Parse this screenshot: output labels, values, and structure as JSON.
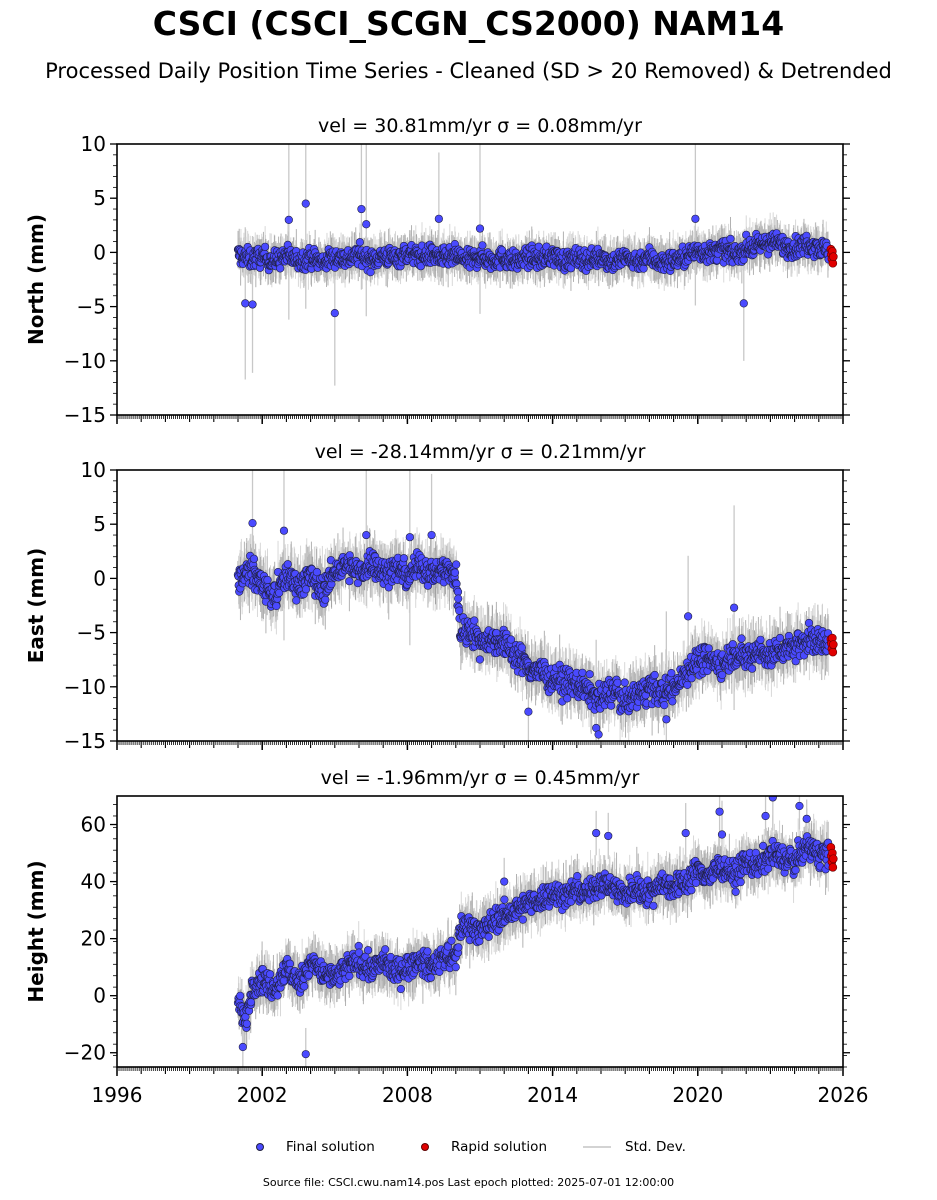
{
  "title": "CSCI (CSCI_SCGN_CS2000) NAM14",
  "subtitle": "Processed Daily Position Time Series - Cleaned (SD > 20 Removed) & Detrended",
  "legend": {
    "final_label": "Final solution",
    "rapid_label": "Rapid solution",
    "sd_label": "Std. Dev."
  },
  "footer": "Source file: CSCI.cwu.nam14.pos  Last epoch plotted: 2025-07-01 12:00:00",
  "colors": {
    "final": "#4a4aff",
    "final_edge": "#202040",
    "rapid": "#e00000",
    "sd": "#c8c8c8",
    "sd_dense": "#555555"
  },
  "chart_data": [
    {
      "type": "scatter",
      "panel": "north",
      "title": "vel = 30.81mm/yr   σ = 0.08mm/yr",
      "ylabel": "North (mm)",
      "xlim": [
        1996,
        2026
      ],
      "ylim": [
        -15,
        10
      ],
      "yticks": [
        10,
        5,
        0,
        -5,
        -10,
        -15
      ],
      "ytick_labels": [
        "10",
        "5",
        "0",
        "−5",
        "−10",
        "−15"
      ],
      "xticks": [
        1996,
        2002,
        2008,
        2014,
        2020,
        2026
      ],
      "xtick_labels": [
        "1996",
        "2002",
        "2008",
        "2014",
        "2020",
        "2026"
      ],
      "show_xtick_labels": false,
      "series": [
        {
          "type": "final",
          "x": [
            2001.0,
            2001.5,
            2002.0,
            2002.5,
            2003.0,
            2003.5,
            2004.0,
            2004.5,
            2005.0,
            2005.5,
            2006.0,
            2006.5,
            2007.0,
            2007.5,
            2008.0,
            2008.5,
            2009.0,
            2009.5,
            2010.0,
            2010.5,
            2011.0,
            2011.5,
            2012.0,
            2012.5,
            2013.0,
            2013.5,
            2014.0,
            2014.5,
            2015.0,
            2015.5,
            2016.0,
            2016.5,
            2017.0,
            2017.5,
            2018.0,
            2018.5,
            2019.0,
            2019.5,
            2020.0,
            2020.5,
            2021.0,
            2021.5,
            2022.0,
            2022.5,
            2023.0,
            2023.5,
            2024.0,
            2024.5,
            2025.0,
            2025.4
          ],
          "y": [
            -0.2,
            -0.6,
            -0.4,
            -0.8,
            -0.3,
            -0.7,
            -0.5,
            -0.9,
            -0.4,
            -0.6,
            -0.2,
            -0.7,
            -0.3,
            -0.5,
            -0.1,
            -0.4,
            -0.2,
            -0.6,
            -0.3,
            -0.8,
            -0.4,
            -0.7,
            -0.5,
            -0.9,
            -0.4,
            -0.6,
            -0.3,
            -0.8,
            -0.5,
            -0.7,
            -0.4,
            -0.9,
            -0.5,
            -0.8,
            -0.4,
            -1.0,
            -0.7,
            -0.4,
            0.2,
            -0.1,
            0.3,
            -0.2,
            0.4,
            0.6,
            1.0,
            0.7,
            0.4,
            0.8,
            0.5,
            0.1
          ],
          "band": 1.6
        },
        {
          "type": "outliers",
          "x": [
            2001.3,
            2001.6,
            2003.1,
            2003.8,
            2005.0,
            2006.1,
            2006.3,
            2009.3,
            2019.9,
            2021.9,
            2011.0
          ],
          "y": [
            -4.7,
            -4.8,
            3.0,
            4.5,
            -5.6,
            4.0,
            2.6,
            3.1,
            3.1,
            -4.7,
            2.2
          ],
          "sd_max": 9.5
        },
        {
          "type": "rapid",
          "x": [
            2025.5,
            2025.52,
            2025.54,
            2025.56,
            2025.58,
            2025.6
          ],
          "y": [
            0.3,
            -0.2,
            -0.6,
            0.1,
            -1.0,
            -0.4
          ]
        }
      ]
    },
    {
      "type": "scatter",
      "panel": "east",
      "title": "vel = -28.14mm/yr   σ = 0.21mm/yr",
      "ylabel": "East (mm)",
      "xlim": [
        1996,
        2026
      ],
      "ylim": [
        -15,
        10
      ],
      "yticks": [
        10,
        5,
        0,
        -5,
        -10,
        -15
      ],
      "ytick_labels": [
        "10",
        "5",
        "0",
        "−5",
        "−10",
        "−15"
      ],
      "xticks": [
        1996,
        2002,
        2008,
        2014,
        2020,
        2026
      ],
      "xtick_labels": [
        "1996",
        "2002",
        "2008",
        "2014",
        "2020",
        "2026"
      ],
      "show_xtick_labels": false,
      "series": [
        {
          "type": "final",
          "x": [
            2001.0,
            2001.5,
            2002.0,
            2002.5,
            2003.0,
            2003.5,
            2004.0,
            2004.5,
            2005.0,
            2005.5,
            2006.0,
            2006.5,
            2007.0,
            2007.5,
            2008.0,
            2008.5,
            2009.0,
            2009.5,
            2010.0,
            2010.2,
            2010.6,
            2011.0,
            2011.5,
            2012.0,
            2012.5,
            2013.0,
            2013.5,
            2014.0,
            2014.5,
            2015.0,
            2015.5,
            2016.0,
            2016.5,
            2017.0,
            2017.5,
            2018.0,
            2018.5,
            2019.0,
            2019.5,
            2020.0,
            2020.5,
            2021.0,
            2021.5,
            2022.0,
            2022.5,
            2023.0,
            2023.5,
            2024.0,
            2024.5,
            2025.0,
            2025.4
          ],
          "y": [
            -0.2,
            0.8,
            -0.5,
            -1.8,
            0.3,
            -0.6,
            0.2,
            -1.2,
            0.6,
            1.2,
            0.4,
            1.6,
            0.5,
            0.9,
            0.2,
            1.3,
            0.5,
            0.8,
            0.2,
            -5.0,
            -4.6,
            -5.8,
            -5.6,
            -6.0,
            -7.0,
            -8.2,
            -8.6,
            -9.2,
            -9.6,
            -9.8,
            -10.4,
            -11.2,
            -10.2,
            -11.4,
            -10.8,
            -10.0,
            -10.6,
            -10.2,
            -8.6,
            -7.6,
            -7.4,
            -8.0,
            -6.8,
            -7.4,
            -6.6,
            -7.2,
            -6.4,
            -6.2,
            -5.6,
            -5.9,
            -5.8
          ],
          "band": 2.2
        },
        {
          "type": "outliers",
          "x": [
            2001.6,
            2002.9,
            2006.3,
            2009.0,
            2008.1,
            2015.8,
            2015.9,
            2021.5,
            2013.0,
            2018.7,
            2019.6
          ],
          "y": [
            5.1,
            4.4,
            4.0,
            4.0,
            3.8,
            -13.8,
            -14.4,
            -2.7,
            -12.3,
            -13.0,
            -3.5
          ],
          "sd_max": 10
        },
        {
          "type": "rapid",
          "x": [
            2025.5,
            2025.52,
            2025.54,
            2025.56,
            2025.58,
            2025.6
          ],
          "y": [
            -5.6,
            -6.0,
            -6.5,
            -5.5,
            -6.8,
            -6.1
          ]
        }
      ]
    },
    {
      "type": "scatter",
      "panel": "height",
      "title": "vel = -1.96mm/yr   σ = 0.45mm/yr",
      "ylabel": "Height (mm)",
      "xlim": [
        1996,
        2026
      ],
      "ylim": [
        -25,
        70
      ],
      "yticks": [
        60,
        40,
        20,
        0,
        -20
      ],
      "ytick_labels": [
        "60",
        "40",
        "20",
        "0",
        "−20"
      ],
      "xticks": [
        1996,
        2002,
        2008,
        2014,
        2020,
        2026
      ],
      "xtick_labels": [
        "1996",
        "2002",
        "2008",
        "2014",
        "2020",
        "2026"
      ],
      "show_xtick_labels": true,
      "series": [
        {
          "type": "final",
          "x": [
            2001.0,
            2001.3,
            2001.6,
            2002.0,
            2002.5,
            2003.0,
            2003.5,
            2004.0,
            2004.5,
            2005.0,
            2005.5,
            2006.0,
            2006.5,
            2007.0,
            2007.5,
            2008.0,
            2008.5,
            2009.0,
            2009.5,
            2010.0,
            2010.2,
            2010.6,
            2011.0,
            2011.5,
            2012.0,
            2012.5,
            2013.0,
            2013.5,
            2014.0,
            2014.5,
            2015.0,
            2015.5,
            2016.0,
            2016.5,
            2017.0,
            2017.5,
            2018.0,
            2018.5,
            2019.0,
            2019.5,
            2020.0,
            2020.5,
            2021.0,
            2021.5,
            2022.0,
            2022.5,
            2023.0,
            2023.5,
            2024.0,
            2024.5,
            2025.0,
            2025.4
          ],
          "y": [
            -2.0,
            -10.0,
            4.0,
            6.0,
            2.0,
            10.0,
            4.0,
            12.0,
            8.0,
            6.0,
            10.0,
            12.0,
            9.0,
            12.0,
            8.0,
            10.0,
            12.0,
            10.0,
            14.0,
            13.0,
            24.0,
            25.0,
            22.0,
            26.0,
            28.0,
            30.0,
            32.0,
            34.0,
            36.0,
            35.0,
            37.0,
            36.0,
            40.0,
            38.0,
            35.0,
            38.0,
            36.0,
            40.0,
            38.0,
            40.0,
            44.0,
            42.0,
            46.0,
            42.0,
            47.0,
            45.0,
            50.0,
            48.0,
            47.0,
            52.0,
            50.0,
            49.0
          ],
          "band": 7.5
        },
        {
          "type": "outliers",
          "x": [
            2001.2,
            2003.8,
            2010.0,
            2012.0,
            2015.8,
            2016.3,
            2019.5,
            2020.9,
            2023.1,
            2024.2,
            2024.5,
            2021.0,
            2022.8
          ],
          "y": [
            -18.0,
            -20.5,
            10.0,
            40.0,
            57.0,
            56.0,
            57.0,
            64.5,
            69.5,
            66.5,
            62.0,
            56.5,
            63.0
          ],
          "sd_max": 12
        },
        {
          "type": "rapid",
          "x": [
            2025.5,
            2025.52,
            2025.54,
            2025.56,
            2025.58,
            2025.6
          ],
          "y": [
            52.0,
            49.0,
            47.0,
            50.0,
            45.0,
            48.0
          ]
        }
      ]
    }
  ]
}
